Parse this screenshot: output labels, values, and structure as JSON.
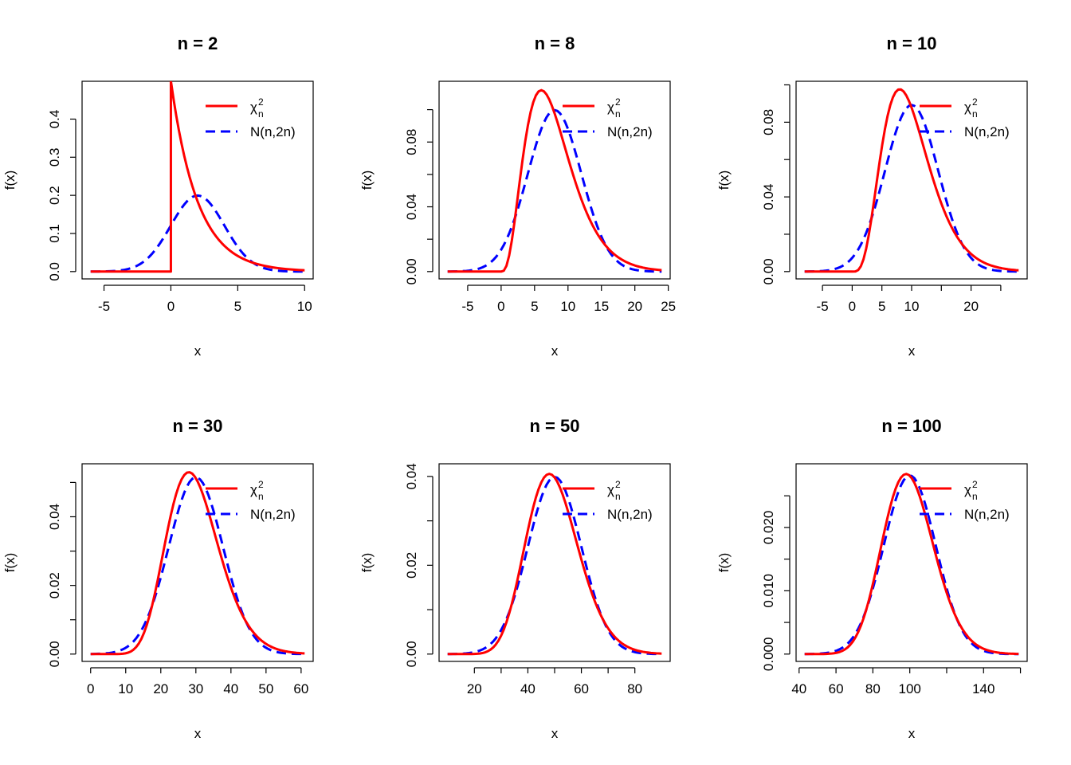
{
  "colors": {
    "chi": "#ff0000",
    "norm": "#0000ff"
  },
  "legend": {
    "chi_label": "χ",
    "chi_sup": "2",
    "chi_sub": "n",
    "norm_label": "N(n,2n)"
  },
  "chart_data": [
    {
      "type": "line",
      "title": "n =  2",
      "n": 2,
      "xlabel": "x",
      "ylabel": "f(x)",
      "xlim": [
        -6,
        10
      ],
      "ylim": [
        0,
        0.48
      ],
      "xticks": [
        -5,
        0,
        5,
        10
      ],
      "yticks": [
        0.0,
        0.1,
        0.2,
        0.3,
        0.4
      ],
      "xtick_labels": [
        "-5",
        "0",
        "5",
        "10"
      ],
      "ytick_labels": [
        "0.0",
        "0.1",
        "0.2",
        "0.3",
        "0.4"
      ],
      "legend_position": "top-right",
      "series": [
        {
          "values": []
        },
        {
          "values": []
        }
      ]
    },
    {
      "type": "line",
      "title": "n =  8",
      "n": 8,
      "xlabel": "x",
      "ylabel": "f(x)",
      "xlim": [
        -8,
        24
      ],
      "ylim": [
        0,
        0.113
      ],
      "xticks": [
        -5,
        0,
        5,
        10,
        15,
        20,
        25
      ],
      "yticks": [
        0.0,
        0.04,
        0.08
      ],
      "xtick_labels": [
        "-5",
        "0",
        "5",
        "10",
        "15",
        "20",
        "25"
      ],
      "ytick_labels": [
        "0.00",
        "0.04",
        "0.08"
      ],
      "extra_yticks": [
        0.02,
        0.06,
        0.1
      ],
      "legend_position": "top-right",
      "series": [
        {
          "values": []
        },
        {
          "values": []
        }
      ]
    },
    {
      "type": "line",
      "title": "n =  10",
      "n": 10,
      "xlabel": "x",
      "ylabel": "f(x)",
      "xlim": [
        -8,
        28
      ],
      "ylim": [
        0,
        0.098
      ],
      "xticks": [
        -5,
        0,
        5,
        10,
        20
      ],
      "yticks": [
        0.0,
        0.04,
        0.08
      ],
      "xtick_labels": [
        "-5",
        "0",
        "5",
        "10",
        "20"
      ],
      "ytick_labels": [
        "0.00",
        "0.04",
        "0.08"
      ],
      "extra_xticks": [
        15,
        25
      ],
      "extra_yticks": [
        0.02,
        0.06,
        0.1
      ],
      "legend_position": "top-right",
      "series": [
        {
          "values": []
        },
        {
          "values": []
        }
      ]
    },
    {
      "type": "line",
      "title": "n =  30",
      "n": 30,
      "xlabel": "x",
      "ylabel": "f(x)",
      "xlim": [
        0,
        61
      ],
      "ylim": [
        0,
        0.0533
      ],
      "xticks": [
        0,
        10,
        20,
        30,
        40,
        50,
        60
      ],
      "yticks": [
        0.0,
        0.02,
        0.04
      ],
      "xtick_labels": [
        "0",
        "10",
        "20",
        "30",
        "40",
        "50",
        "60"
      ],
      "ytick_labels": [
        "0.00",
        "0.02",
        "0.04"
      ],
      "extra_yticks": [
        0.01,
        0.03,
        0.05
      ],
      "legend_position": "top-right",
      "series": [
        {
          "values": []
        },
        {
          "values": []
        }
      ]
    },
    {
      "type": "line",
      "title": "n =  50",
      "n": 50,
      "xlabel": "x",
      "ylabel": "f(x)",
      "xlim": [
        10,
        90
      ],
      "ylim": [
        0,
        0.0412
      ],
      "xticks": [
        20,
        40,
        60,
        80
      ],
      "yticks": [
        0.0,
        0.02,
        0.04
      ],
      "xtick_labels": [
        "20",
        "40",
        "60",
        "80"
      ],
      "ytick_labels": [
        "0.00",
        "0.02",
        "0.04"
      ],
      "extra_xticks": [
        30,
        50,
        70
      ],
      "extra_yticks": [
        0.01,
        0.03
      ],
      "legend_position": "top-right",
      "series": [
        {
          "values": []
        },
        {
          "values": []
        }
      ]
    },
    {
      "type": "line",
      "title": "n =  100",
      "n": 100,
      "xlabel": "x",
      "ylabel": "f(x)",
      "xlim": [
        43,
        159
      ],
      "ylim": [
        0,
        0.0289
      ],
      "xticks": [
        40,
        60,
        80,
        100,
        140
      ],
      "yticks": [
        0.0,
        0.01,
        0.02
      ],
      "xtick_labels": [
        "40",
        "60",
        "80",
        "100",
        "140"
      ],
      "ytick_labels": [
        "0.000",
        "0.010",
        "0.020"
      ],
      "extra_xticks": [
        120,
        160
      ],
      "extra_yticks": [
        0.005,
        0.015,
        0.025
      ],
      "legend_position": "top-right",
      "series": [
        {
          "values": []
        },
        {
          "values": []
        }
      ]
    }
  ]
}
